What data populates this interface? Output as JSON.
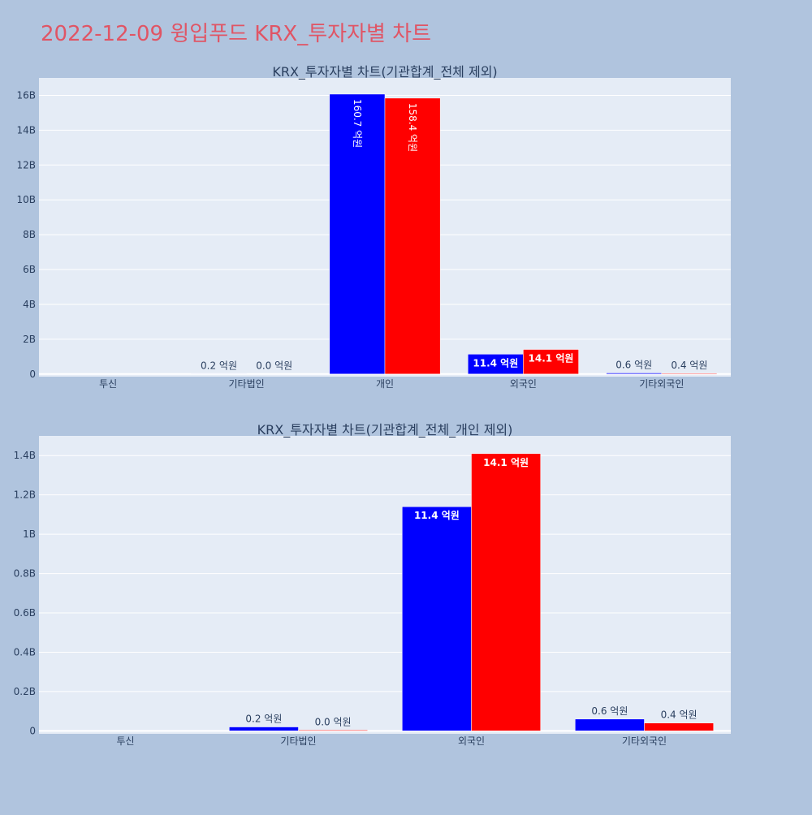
{
  "page": {
    "title": "2022-12-09 윙입푸드 KRX_투자자별 차트",
    "title_color": "#e05565",
    "background": "#b0c4de",
    "plot_background": "#e5ecf6"
  },
  "chart_data": [
    {
      "type": "bar",
      "title": "KRX_투자자별 차트(기관합계_전체 제외)",
      "xlabel": "",
      "ylabel": "",
      "categories": [
        "투신",
        "기타법인",
        "개인",
        "외국인",
        "기타외국인"
      ],
      "series": [
        {
          "color": "#0000ff",
          "values": [
            0,
            20000000,
            16070000000,
            1140000000,
            60000000
          ],
          "labels": [
            "",
            "0.2 억원",
            "160.7 억원",
            "11.4 억원",
            "0.6 억원"
          ]
        },
        {
          "color": "#ff0000",
          "values": [
            0,
            4000000,
            15840000000,
            1410000000,
            40000000
          ],
          "labels": [
            "",
            "0.0 억원",
            "158.4 억원",
            "14.1 억원",
            "0.4 억원"
          ]
        }
      ],
      "ylim": [
        -150000000,
        17000000000
      ],
      "yticks": [
        0,
        2000000000,
        4000000000,
        6000000000,
        8000000000,
        10000000000,
        12000000000,
        14000000000,
        16000000000
      ],
      "ytick_labels": [
        "0",
        "2B",
        "4B",
        "6B",
        "8B",
        "10B",
        "12B",
        "14B",
        "16B"
      ],
      "grid": true
    },
    {
      "type": "bar",
      "title": "KRX_투자자별 차트(기관합계_전체_개인 제외)",
      "xlabel": "",
      "ylabel": "",
      "categories": [
        "투신",
        "기타법인",
        "외국인",
        "기타외국인"
      ],
      "series": [
        {
          "color": "#0000ff",
          "values": [
            0,
            20000000,
            1140000000,
            60000000
          ],
          "labels": [
            "",
            "0.2 억원",
            "11.4 억원",
            "0.6 억원"
          ]
        },
        {
          "color": "#ff0000",
          "values": [
            0,
            4000000,
            1410000000,
            40000000
          ],
          "labels": [
            "",
            "0.0 억원",
            "14.1 억원",
            "0.4 억원"
          ]
        }
      ],
      "ylim": [
        -15000000,
        1500000000
      ],
      "yticks": [
        0,
        200000000,
        400000000,
        600000000,
        800000000,
        1000000000,
        1200000000,
        1400000000
      ],
      "ytick_labels": [
        "0",
        "0.2B",
        "0.4B",
        "0.6B",
        "0.8B",
        "1B",
        "1.2B",
        "1.4B"
      ],
      "grid": true
    }
  ]
}
